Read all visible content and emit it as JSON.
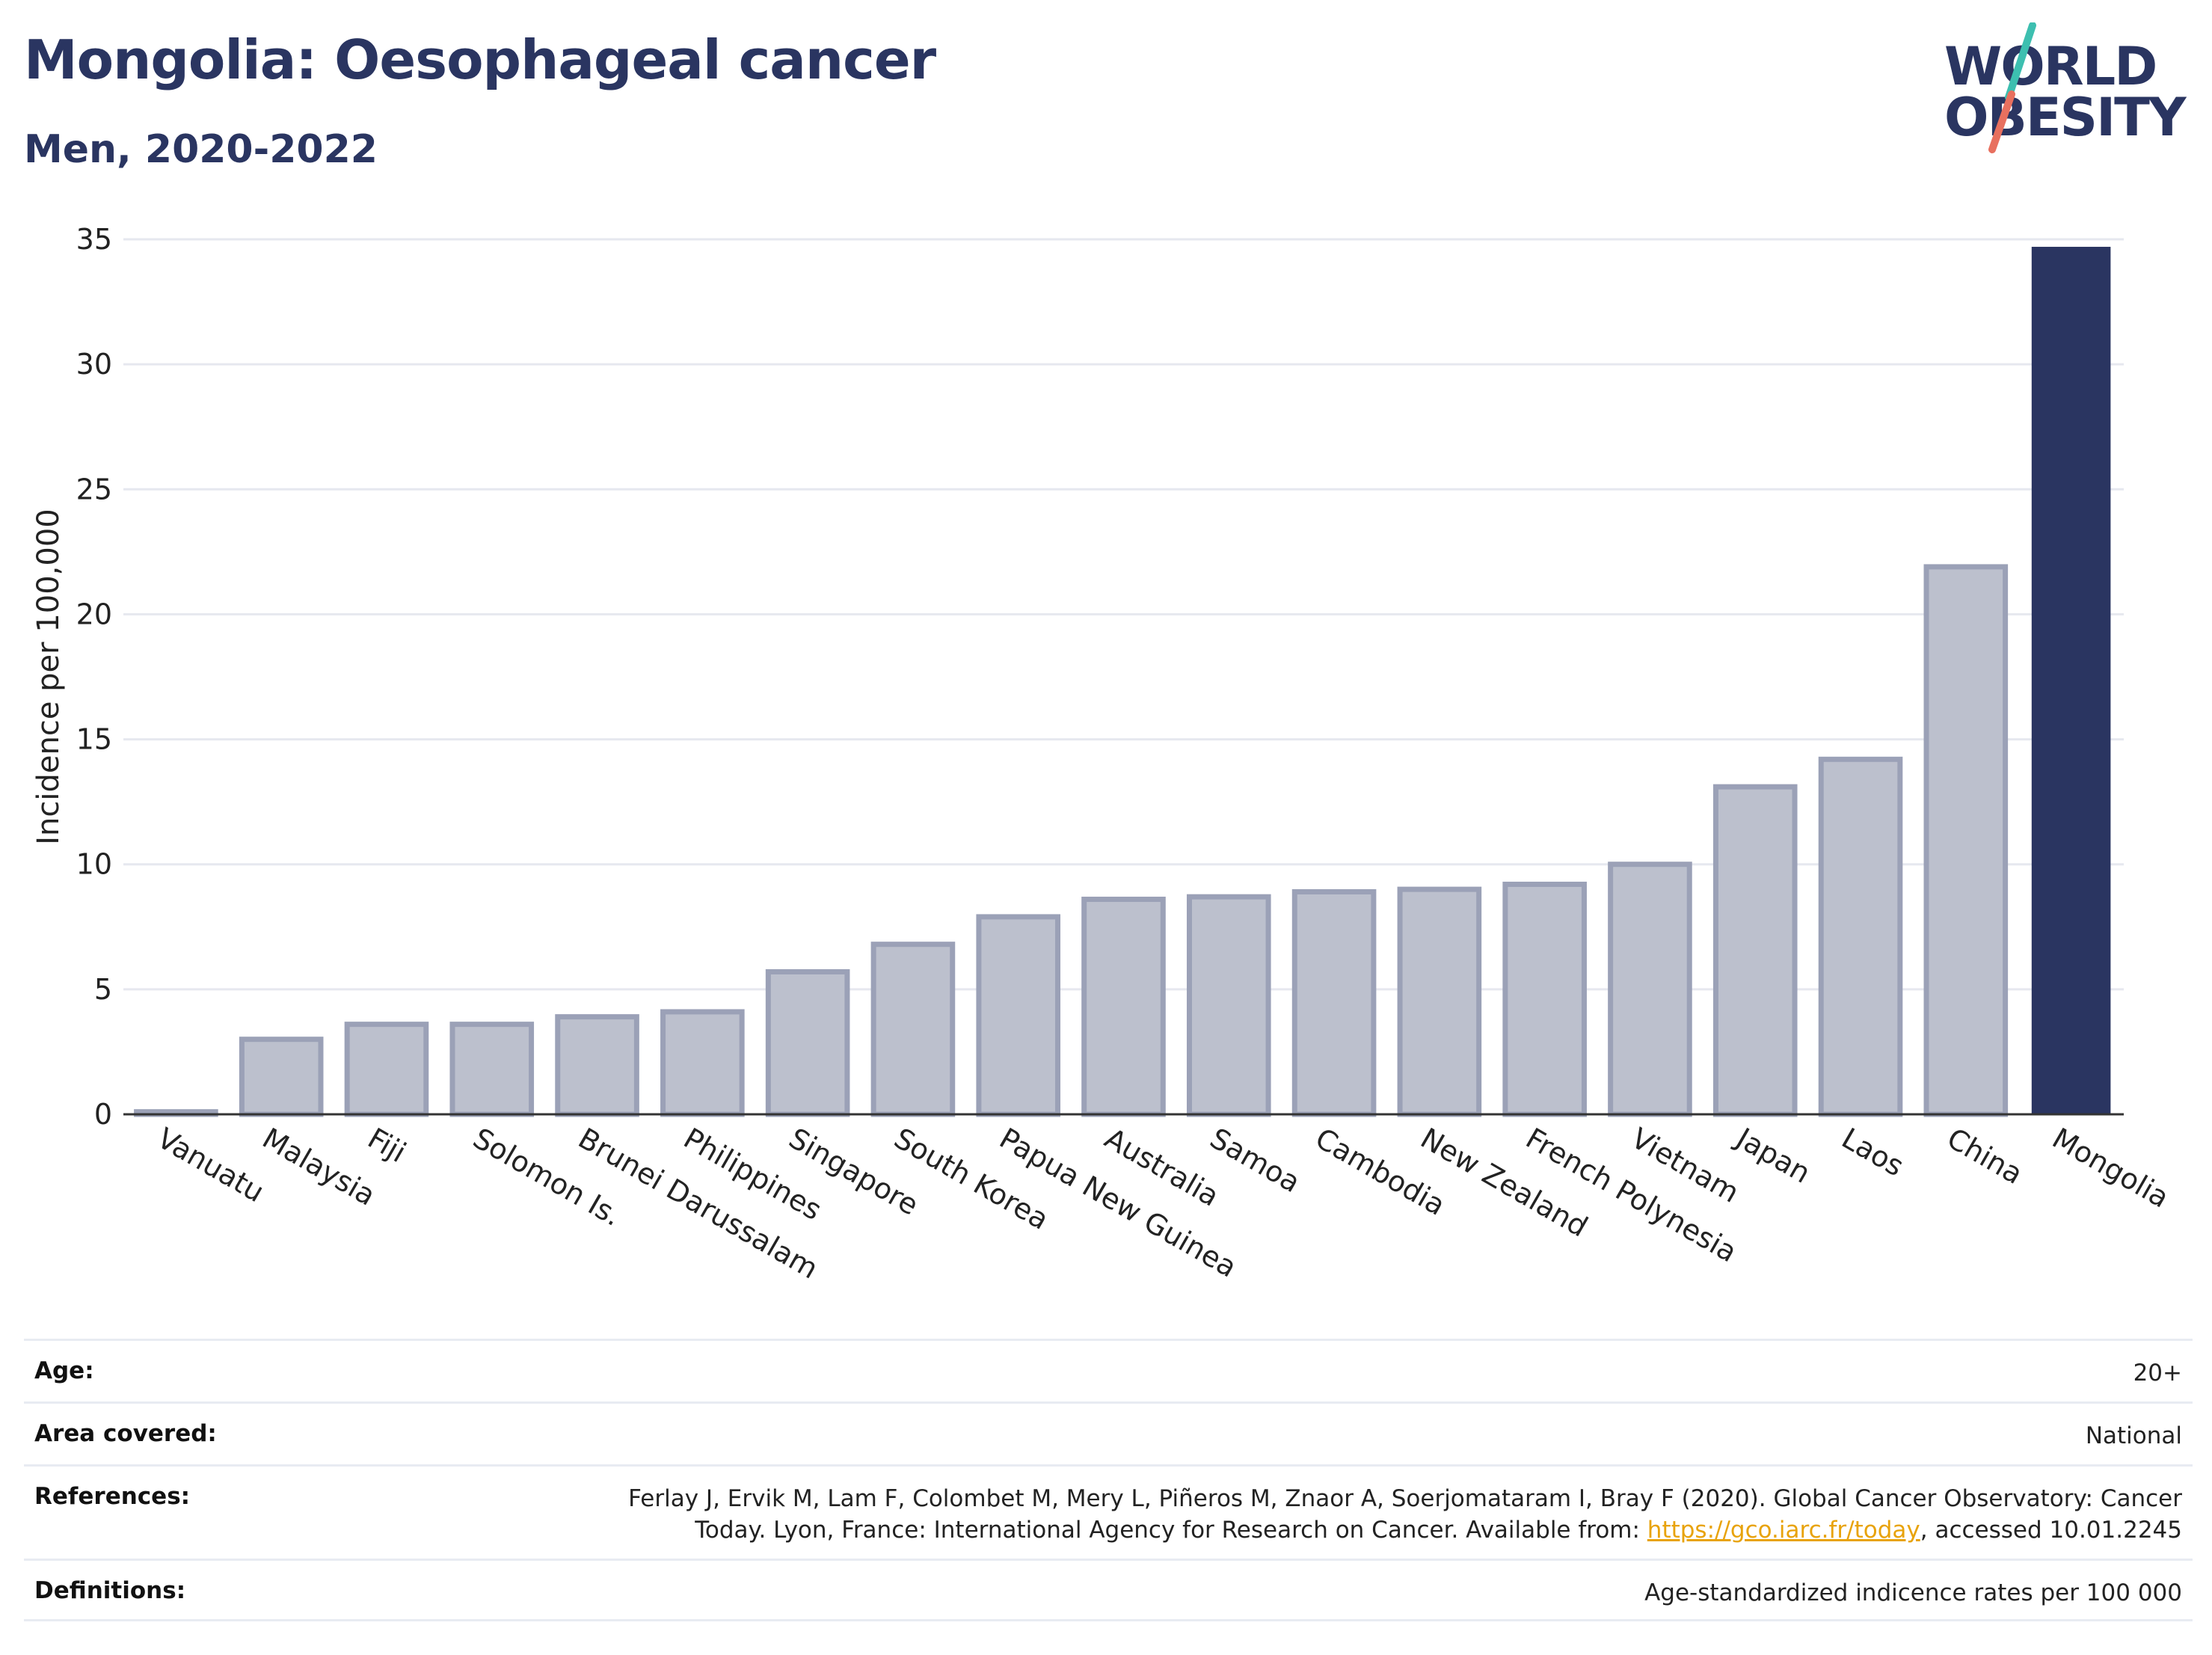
{
  "header": {
    "title": "Mongolia: Oesophageal cancer",
    "subtitle": "Men, 2020-2022"
  },
  "logo": {
    "line1": "WORLD",
    "line2": "OBESITY",
    "brand_color": "#2a3561",
    "slash_top_color": "#3dbfb0",
    "slash_bottom_color": "#e8705f"
  },
  "chart_data": {
    "type": "bar",
    "title": "Mongolia: Oesophageal cancer",
    "subtitle": "Men, 2020-2022",
    "xlabel": "",
    "ylabel": "Incidence per 100,000",
    "ylim": [
      0,
      35
    ],
    "yticks": [
      0,
      5,
      10,
      15,
      20,
      25,
      30,
      35
    ],
    "grid": true,
    "highlight": "Mongolia",
    "colors": {
      "highlight": "#2a3561",
      "other_fill": "#bcc0cd",
      "other_stroke": "#9ba1b7"
    },
    "categories": [
      "Vanuatu",
      "Malaysia",
      "Fiji",
      "Solomon Is.",
      "Brunei Darussalam",
      "Philippines",
      "Singapore",
      "South Korea",
      "Papua New Guinea",
      "Australia",
      "Samoa",
      "Cambodia",
      "New Zealand",
      "French Polynesia",
      "Vietnam",
      "Japan",
      "Laos",
      "China",
      "Mongolia"
    ],
    "values": [
      0.1,
      3.0,
      3.6,
      3.6,
      3.9,
      4.1,
      5.7,
      6.8,
      7.9,
      8.6,
      8.7,
      8.9,
      9.0,
      9.2,
      10.0,
      13.1,
      14.2,
      21.9,
      34.7
    ]
  },
  "info": {
    "age_label": "Age:",
    "age_value": "20+",
    "area_label": "Area covered:",
    "area_value": "National",
    "references_label": "References:",
    "references_text_1": "Ferlay J, Ervik M, Lam F, Colombet M, Mery L, Piñeros M, Znaor A, Soerjomataram I, Bray F (2020). Global Cancer Observatory: Cancer Today. Lyon, France: International Agency for Research on Cancer. Available from: ",
    "references_link": "https://gco.iarc.fr/today",
    "references_text_2": ", accessed 10.01.2245",
    "definitions_label": "Definitions:",
    "definitions_value": "Age-standardized indicence rates per 100 000"
  }
}
